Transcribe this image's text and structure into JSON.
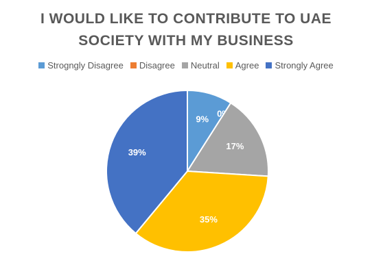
{
  "chart_data": {
    "type": "pie",
    "title_lines": [
      "I WOULD LIKE TO CONTRIBUTE TO UAE",
      "SOCIETY WITH MY BUSINESS"
    ],
    "categories": [
      "Strogngly Disagree",
      "Disagree",
      "Neutral",
      "Agree",
      "Strongly Agree"
    ],
    "values": [
      9,
      0,
      17,
      35,
      39
    ],
    "labels": [
      "9%",
      "0%",
      "17%",
      "35%",
      "39%"
    ],
    "colors": [
      "#5B9BD5",
      "#ED7D31",
      "#A5A5A5",
      "#FFC000",
      "#4472C4"
    ],
    "label_colors": [
      "#ffffff",
      "#ffffff",
      "#ffffff",
      "#ffffff",
      "#ffffff"
    ],
    "legend_position": "top",
    "start_angle": "12 o'clock, clockwise"
  }
}
